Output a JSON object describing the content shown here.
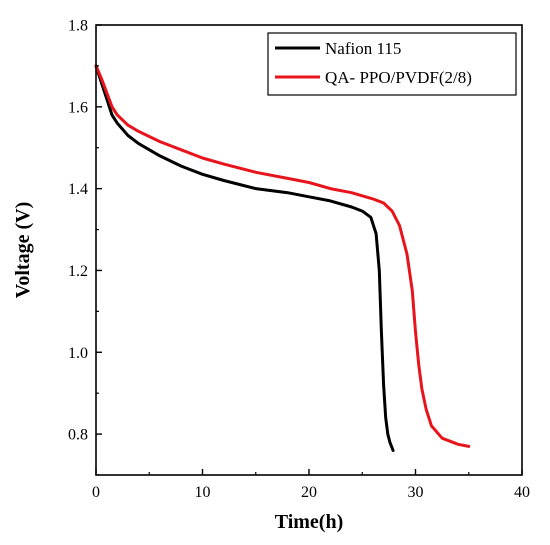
{
  "chart_data": {
    "type": "line",
    "title": "",
    "xlabel": "Time(h)",
    "ylabel": "Voltage (V)",
    "xlim": [
      0,
      40
    ],
    "ylim": [
      0.7,
      1.8
    ],
    "xticks": [
      0,
      10,
      20,
      30,
      40
    ],
    "yticks": [
      0.8,
      1.0,
      1.2,
      1.4,
      1.6,
      1.8
    ],
    "xtick_labels": [
      "0",
      "10",
      "20",
      "30",
      "40"
    ],
    "ytick_labels": [
      "0.8",
      "1.0",
      "1.2",
      "1.4",
      "1.6",
      "1.8"
    ],
    "grid": false,
    "legend_position": "top-right",
    "series": [
      {
        "name": "Nafion 115",
        "color": "#000000",
        "x": [
          0,
          0.5,
          1,
          1.5,
          2,
          3,
          4,
          6,
          8,
          10,
          12,
          15,
          18,
          20,
          22,
          24,
          25,
          25.8,
          26.3,
          26.6,
          26.8,
          27.0,
          27.2,
          27.4,
          27.6,
          27.9
        ],
        "y": [
          1.7,
          1.66,
          1.62,
          1.58,
          1.56,
          1.53,
          1.51,
          1.48,
          1.455,
          1.435,
          1.42,
          1.4,
          1.39,
          1.38,
          1.37,
          1.355,
          1.345,
          1.33,
          1.29,
          1.2,
          1.05,
          0.92,
          0.84,
          0.8,
          0.78,
          0.76
        ]
      },
      {
        "name": "QA- PPO/PVDF(2/8)",
        "color": "#e8141c",
        "x": [
          0,
          0.5,
          1,
          1.5,
          2,
          3,
          4,
          6,
          8,
          10,
          12,
          15,
          18,
          20,
          22,
          24,
          26,
          27,
          27.8,
          28.5,
          29.2,
          29.7,
          30.0,
          30.3,
          30.6,
          31.0,
          31.5,
          32.5,
          34,
          35
        ],
        "y": [
          1.7,
          1.67,
          1.635,
          1.6,
          1.58,
          1.555,
          1.54,
          1.515,
          1.495,
          1.475,
          1.46,
          1.44,
          1.425,
          1.415,
          1.4,
          1.39,
          1.375,
          1.365,
          1.345,
          1.31,
          1.24,
          1.15,
          1.05,
          0.97,
          0.91,
          0.86,
          0.82,
          0.79,
          0.775,
          0.77
        ]
      }
    ]
  }
}
